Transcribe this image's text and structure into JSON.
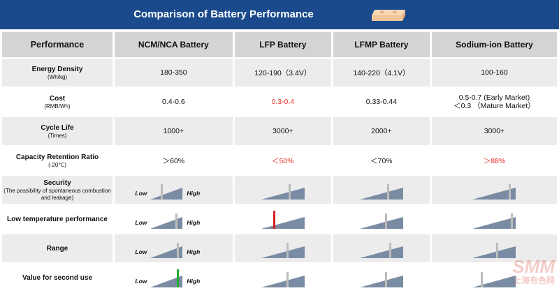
{
  "title": "Comparison of Battery Performance",
  "columns": [
    "Performance",
    "NCM/NCA Battery",
    "LFP Battery",
    "LFMP Battery",
    "Sodium-ion Battery"
  ],
  "gauge_low": "Low",
  "gauge_high": "High",
  "colors": {
    "header": "#1a4a8c",
    "wedge": "#7a8ca3",
    "marker_default": "#bcbcbc",
    "marker_low": "#d21f1f",
    "marker_high": "#22aa33",
    "highlight_text": "#e8302a"
  },
  "rows": [
    {
      "label": "Energy Density",
      "sublabel": "(Wh/kg)",
      "values": [
        "180-350",
        "120-190（3.4V）",
        "140-220（4.1V）",
        "100-160"
      ]
    },
    {
      "label": "Cost",
      "sublabel": "(RMB/Wh)",
      "values": [
        "0.4-0.6",
        "0.3-0.4",
        "0.33-0.44",
        "0.5-0.7 (Early Market)",
        "＜0.3 （Mature Market）"
      ]
    },
    {
      "label": "Cycle Life",
      "sublabel": "(Times)",
      "values": [
        "1000+",
        "3000+",
        "2000+",
        "3000+"
      ]
    },
    {
      "label": "Capacity Retention Ratio",
      "sublabel": "(-20℃)",
      "values": [
        "＞60%",
        "＜50%",
        "＜70%",
        "＞88%"
      ]
    },
    {
      "label": "Security",
      "sublabel": "(The possibility of spontaneous combustion and leakage)",
      "levels": [
        0.35,
        0.65,
        0.65,
        0.85
      ]
    },
    {
      "label": "Low temperature performance",
      "levels": [
        0.8,
        0.3,
        0.6,
        0.9
      ]
    },
    {
      "label": "Range",
      "levels": [
        0.85,
        0.6,
        0.7,
        0.55
      ]
    },
    {
      "label": "Value for second use",
      "levels": [
        0.85,
        0.6,
        0.6,
        0.2
      ]
    }
  ],
  "watermark": {
    "brand": "SMM",
    "site": "上海有色网"
  }
}
